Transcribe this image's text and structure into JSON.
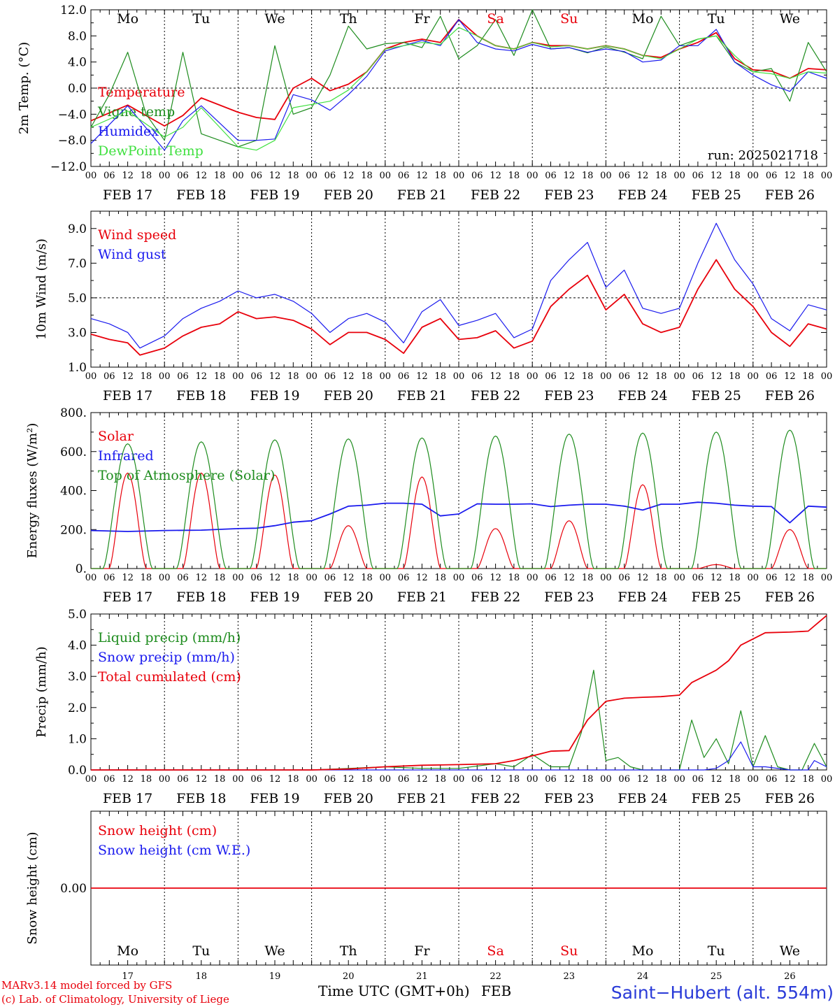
{
  "colors": {
    "red": "#e8000b",
    "green": "#1e8c1e",
    "blue": "#1a1aee",
    "lightgreen": "#40e040",
    "weekend": "#e8000b",
    "axis": "#000000"
  },
  "days": [
    "FEB 17",
    "FEB 18",
    "FEB 19",
    "FEB 20",
    "FEB 21",
    "FEB 22",
    "FEB 23",
    "FEB 24",
    "FEB 25",
    "FEB 26"
  ],
  "weekday_labels": [
    "Mo",
    "Tu",
    "We",
    "Th",
    "Fr",
    "Sa",
    "Su",
    "Mo",
    "Tu",
    "We"
  ],
  "weekend_flags": [
    false,
    false,
    false,
    false,
    false,
    true,
    true,
    false,
    false,
    false
  ],
  "day_numbers": [
    "17",
    "18",
    "19",
    "20",
    "21",
    "22",
    "23",
    "24",
    "25",
    "26"
  ],
  "hour_ticks": [
    "00",
    "06",
    "12",
    "18"
  ],
  "final_tick": "00",
  "chart_data": [
    {
      "type": "line",
      "ylabel": "2m Temp. (°C)",
      "ylim": [
        -12,
        12
      ],
      "yticks": [
        "12.0",
        "8.0",
        "4.0",
        "0.0",
        "−4.0",
        "−8.0",
        "−12.0"
      ],
      "ytick_values": [
        12,
        8,
        4,
        0,
        -4,
        -8,
        -12
      ],
      "ref_line": 0,
      "annotation": "run: 2025021718",
      "x_unit": "hours since FEB 17 00 UTC",
      "series": [
        {
          "name": "Temperature",
          "color": "#e8000b",
          "x": [
            0,
            12,
            24,
            30,
            36,
            48,
            54,
            60,
            66,
            72,
            78,
            84,
            90,
            96,
            102,
            108,
            114,
            120,
            126,
            132,
            138,
            144,
            150,
            156,
            162,
            168,
            174,
            180,
            186,
            192,
            198,
            204,
            210,
            216,
            222,
            228,
            234,
            240
          ],
          "y": [
            -5,
            -2.6,
            -5.8,
            -4.2,
            -1.5,
            -3.7,
            -4.5,
            -4.8,
            0,
            1.5,
            -0.4,
            0.6,
            2.5,
            6,
            7,
            7.5,
            7,
            10.5,
            8,
            6.5,
            6,
            7,
            6.5,
            6.5,
            6,
            6.5,
            6,
            5,
            4.7,
            6,
            7,
            8.5,
            4.5,
            2.8,
            2.6,
            1.5,
            3,
            2.8
          ]
        },
        {
          "name": "Vigne temp",
          "color": "#1e8c1e",
          "x": [
            0,
            6,
            12,
            18,
            24,
            30,
            36,
            42,
            48,
            54,
            60,
            66,
            72,
            78,
            84,
            90,
            96,
            102,
            108,
            114,
            120,
            126,
            132,
            138,
            144,
            150,
            156,
            162,
            168,
            174,
            180,
            186,
            192,
            198,
            204,
            210,
            216,
            222,
            228,
            234,
            240
          ],
          "y": [
            -6,
            -1,
            5.5,
            -4,
            -8,
            5.5,
            -7,
            -8,
            -9,
            -8,
            6.5,
            -4,
            -3,
            2,
            9.5,
            6,
            6.8,
            7,
            6.2,
            11,
            4.5,
            6.5,
            10.5,
            5,
            12,
            6,
            6.2,
            5.4,
            6.3,
            5.5,
            4.5,
            11,
            6.5,
            7.5,
            8,
            4,
            2.5,
            3,
            -2,
            7,
            2.5
          ]
        },
        {
          "name": "Humidex",
          "color": "#1a1aee",
          "x": [
            0,
            12,
            24,
            30,
            36,
            48,
            54,
            60,
            66,
            72,
            78,
            84,
            90,
            96,
            102,
            108,
            114,
            120,
            126,
            132,
            138,
            144,
            150,
            156,
            162,
            168,
            174,
            180,
            186,
            192,
            198,
            204,
            210,
            216,
            222,
            228,
            234,
            240
          ],
          "y": [
            -8.5,
            -2.7,
            -9.5,
            -5,
            -2.7,
            -8,
            -8,
            -7.8,
            -1,
            -1.8,
            -3.4,
            -1,
            1.8,
            5.7,
            6.5,
            7.3,
            6.5,
            10.5,
            7,
            6,
            5.7,
            6.7,
            6,
            6.2,
            5.5,
            6,
            5.6,
            4,
            4.3,
            6.5,
            6.5,
            9,
            4,
            2,
            0.5,
            -0.5,
            2.5,
            1.5
          ]
        },
        {
          "name": "DewPoint Temp",
          "color": "#40e040",
          "x": [
            0,
            12,
            24,
            30,
            36,
            48,
            54,
            60,
            66,
            72,
            78,
            84,
            90,
            96,
            102,
            108,
            114,
            120,
            126,
            132,
            138,
            144,
            150,
            156,
            162,
            168,
            174,
            180,
            186,
            192,
            198,
            204,
            210,
            216,
            222,
            228,
            234,
            240
          ],
          "y": [
            -6,
            -3.5,
            -7.5,
            -6,
            -3,
            -9,
            -9.5,
            -8,
            -3,
            -2.5,
            -2,
            -0.3,
            2.5,
            6,
            6.5,
            7,
            6.7,
            9.3,
            8,
            6.5,
            6,
            7,
            6.3,
            6.5,
            6,
            6.5,
            6,
            5,
            4.5,
            6,
            7.5,
            8,
            5,
            2.5,
            2.2,
            1.5,
            2.5,
            2.3
          ]
        }
      ]
    },
    {
      "type": "line",
      "ylabel": "10m Wind (m/s)",
      "ylim": [
        1,
        10
      ],
      "yticks": [
        "9.0",
        "7.0",
        "5.0",
        "3.0",
        "1.0"
      ],
      "ytick_values": [
        9,
        7,
        5,
        3,
        1
      ],
      "ref_line": 5,
      "x_unit": "hours since FEB 17 00 UTC",
      "series": [
        {
          "name": "Wind speed",
          "color": "#e8000b",
          "x": [
            0,
            6,
            12,
            16,
            24,
            30,
            36,
            42,
            48,
            54,
            60,
            66,
            72,
            78,
            84,
            90,
            96,
            102,
            108,
            114,
            120,
            126,
            132,
            138,
            144,
            150,
            156,
            162,
            168,
            174,
            180,
            186,
            192,
            198,
            204,
            210,
            216,
            222,
            228,
            234,
            240
          ],
          "y": [
            2.9,
            2.6,
            2.4,
            1.7,
            2.1,
            2.8,
            3.3,
            3.5,
            4.2,
            3.8,
            3.9,
            3.7,
            3.2,
            2.3,
            3,
            3,
            2.6,
            1.8,
            3.3,
            3.8,
            2.6,
            2.7,
            3.1,
            2.1,
            2.5,
            4.5,
            5.5,
            6.3,
            4.3,
            5.2,
            3.5,
            3,
            3.3,
            5.5,
            7.2,
            5.5,
            4.5,
            3,
            2.2,
            3.5,
            3.2
          ]
        },
        {
          "name": "Wind gust",
          "color": "#1a1aee",
          "x": [
            0,
            6,
            12,
            16,
            24,
            30,
            36,
            42,
            48,
            54,
            60,
            66,
            72,
            78,
            84,
            90,
            96,
            102,
            108,
            114,
            120,
            126,
            132,
            138,
            144,
            150,
            156,
            162,
            168,
            174,
            180,
            186,
            192,
            198,
            204,
            210,
            216,
            222,
            228,
            234,
            240
          ],
          "y": [
            3.8,
            3.5,
            3,
            2.1,
            2.8,
            3.8,
            4.4,
            4.8,
            5.4,
            5,
            5.2,
            4.8,
            4.1,
            3,
            3.8,
            4.1,
            3.6,
            2.4,
            4.2,
            4.9,
            3.4,
            3.7,
            4.1,
            2.7,
            3.2,
            6,
            7.2,
            8.2,
            5.6,
            6.6,
            4.4,
            4.1,
            4.4,
            7,
            9.3,
            7.2,
            5.8,
            3.8,
            3.1,
            4.6,
            4.3
          ]
        }
      ]
    },
    {
      "type": "line",
      "ylabel": "Energy fluxes (W/m²)",
      "ylim": [
        0,
        800
      ],
      "yticks": [
        "800.",
        "600.",
        "400.",
        "200.",
        "0."
      ],
      "ytick_values": [
        800,
        600,
        400,
        200,
        0
      ],
      "x_unit": "hours since FEB 17 00 UTC",
      "series": [
        {
          "name": "Solar",
          "color": "#e8000b",
          "day_peaks": [
            490,
            490,
            480,
            220,
            470,
            205,
            245,
            430,
            20,
            200
          ]
        },
        {
          "name": "Infrared",
          "color": "#1a1aee",
          "x": [
            0,
            12,
            24,
            36,
            48,
            54,
            60,
            66,
            72,
            78,
            84,
            90,
            96,
            102,
            108,
            114,
            120,
            126,
            132,
            138,
            144,
            150,
            156,
            162,
            168,
            174,
            180,
            186,
            192,
            198,
            204,
            210,
            216,
            222,
            228,
            234,
            240
          ],
          "y": [
            195,
            190,
            195,
            197,
            205,
            207,
            220,
            238,
            245,
            280,
            320,
            325,
            335,
            335,
            330,
            270,
            280,
            332,
            330,
            330,
            332,
            318,
            325,
            330,
            330,
            320,
            300,
            330,
            330,
            340,
            335,
            325,
            320,
            318,
            235,
            320,
            315
          ]
        },
        {
          "name": "Top of Atmosphere (Solar)",
          "color": "#1e8c1e",
          "day_peaks": [
            640,
            650,
            660,
            665,
            670,
            680,
            690,
            695,
            700,
            710
          ]
        }
      ]
    },
    {
      "type": "line",
      "ylabel": "Precip (mm/h)",
      "ylim": [
        0,
        5
      ],
      "yticks": [
        "5.0",
        "4.0",
        "3.0",
        "2.0",
        "1.0",
        "0.0"
      ],
      "ytick_values": [
        5,
        4,
        3,
        2,
        1,
        0
      ],
      "x_unit": "hours since FEB 17 00 UTC",
      "series": [
        {
          "name": "Liquid precip (mm/h)",
          "color": "#1e8c1e",
          "x": [
            0,
            72,
            84,
            96,
            108,
            120,
            132,
            138,
            144,
            150,
            156,
            160,
            164,
            168,
            172,
            176,
            180,
            192,
            196,
            200,
            204,
            208,
            212,
            216,
            220,
            224,
            228,
            232,
            236,
            240
          ],
          "y": [
            0,
            0,
            0.05,
            0.1,
            0.05,
            0.05,
            0.2,
            0.1,
            0.5,
            0.1,
            0.1,
            1.2,
            3.2,
            0.3,
            0.4,
            0.1,
            0,
            0,
            1.6,
            0.4,
            1,
            0.2,
            1.9,
            0.1,
            1.1,
            0.1,
            0,
            0,
            0.85,
            0.1
          ]
        },
        {
          "name": "Snow precip (mm/h)",
          "color": "#1a1aee",
          "x": [
            0,
            200,
            204,
            208,
            212,
            216,
            220,
            228,
            234,
            236,
            240
          ],
          "y": [
            0,
            0,
            0.05,
            0.3,
            0.9,
            0.1,
            0.1,
            0,
            0,
            0.3,
            0.1
          ]
        },
        {
          "name": "Total cumulated (cm)",
          "color": "#e8000b",
          "x": [
            0,
            72,
            84,
            96,
            108,
            120,
            132,
            138,
            144,
            150,
            156,
            162,
            168,
            174,
            180,
            186,
            192,
            196,
            200,
            204,
            208,
            212,
            216,
            220,
            228,
            234,
            240
          ],
          "y": [
            0,
            0,
            0.03,
            0.1,
            0.15,
            0.17,
            0.2,
            0.3,
            0.45,
            0.6,
            0.62,
            1.6,
            2.2,
            2.3,
            2.33,
            2.35,
            2.4,
            2.8,
            3,
            3.2,
            3.5,
            4,
            4.2,
            4.4,
            4.42,
            4.45,
            4.95
          ]
        }
      ]
    },
    {
      "type": "line",
      "ylabel": "Snow height (cm)",
      "ylim": [
        -1,
        1
      ],
      "yticks": [
        "0.00"
      ],
      "ytick_values": [
        0
      ],
      "x_unit": "hours since FEB 17 00 UTC",
      "series": [
        {
          "name": "Snow height (cm)",
          "color": "#e8000b",
          "x": [
            0,
            240
          ],
          "y": [
            0,
            0
          ]
        },
        {
          "name": "Snow height (cm W.E.)",
          "color": "#1a1aee",
          "x": [],
          "y": []
        }
      ]
    }
  ],
  "footer": {
    "model": "MARv3.14 model forced by GFS",
    "credit": "(c) Lab. of Climatology, University of Liege",
    "time_label": "Time UTC (GMT+0h)",
    "month": "FEB",
    "station": "Saint−Hubert (alt. 554m)"
  }
}
